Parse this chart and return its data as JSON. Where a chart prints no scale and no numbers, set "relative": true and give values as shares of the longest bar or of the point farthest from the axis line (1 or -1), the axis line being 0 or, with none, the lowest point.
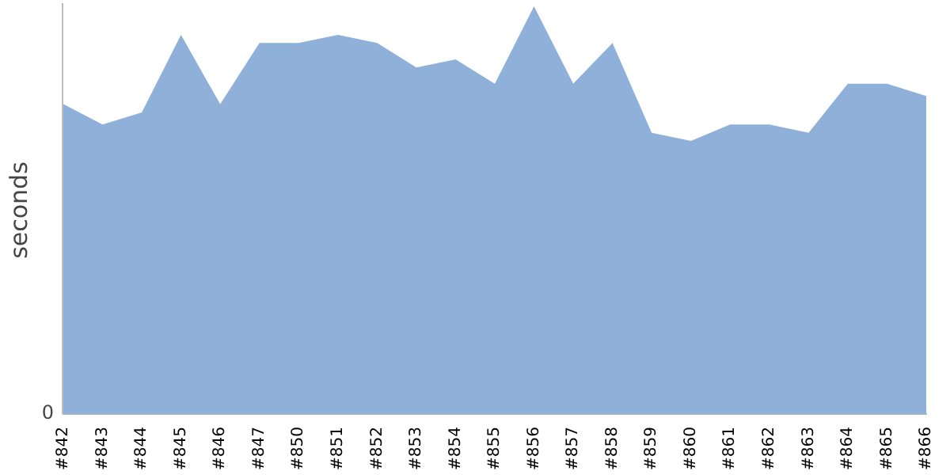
{
  "chart_data": {
    "type": "area",
    "ylabel": "seconds",
    "relative": true,
    "grid": false,
    "legend": false,
    "categories": [
      "#842",
      "#843",
      "#844",
      "#845",
      "#846",
      "#847",
      "#850",
      "#851",
      "#852",
      "#853",
      "#854",
      "#855",
      "#856",
      "#857",
      "#858",
      "#859",
      "#860",
      "#861",
      "#862",
      "#863",
      "#864",
      "#865",
      "#866"
    ],
    "series": [
      {
        "color": "#8fb1d9",
        "values": [
          0.76,
          0.71,
          0.74,
          0.93,
          0.76,
          0.91,
          0.91,
          0.93,
          0.91,
          0.85,
          0.87,
          0.81,
          1,
          0.81,
          0.91,
          0.69,
          0.67,
          0.71,
          0.71,
          0.69,
          0.81,
          0.81,
          0.78
        ]
      }
    ],
    "annotations": [
      "0"
    ]
  }
}
